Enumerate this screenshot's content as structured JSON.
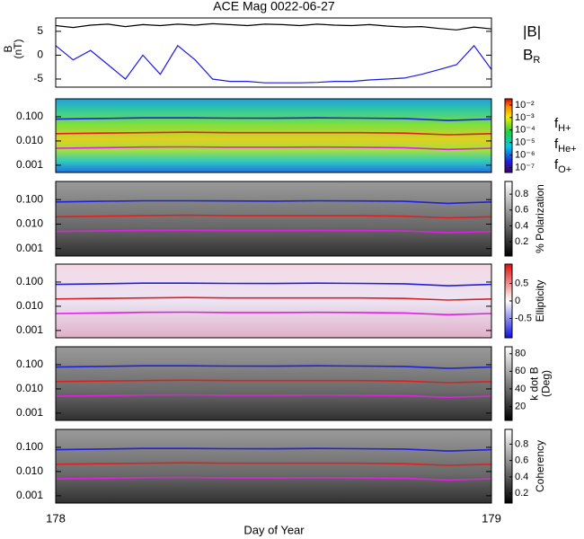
{
  "chart_data": [
    {
      "type": "line",
      "title": "ACE Mag 0022-06-27",
      "ylabel": [
        "B",
        "(nT)"
      ],
      "x": [
        178,
        178.04,
        178.08,
        178.12,
        178.16,
        178.2,
        178.24,
        178.28,
        178.32,
        178.36,
        178.4,
        178.44,
        178.48,
        178.52,
        178.56,
        178.6,
        178.64,
        178.68,
        178.72,
        178.76,
        178.8,
        178.84,
        178.88,
        178.92,
        178.96,
        179
      ],
      "xlim": [
        178,
        179
      ],
      "ylim": [
        -6.7,
        7.8
      ],
      "yticks": [
        5,
        0,
        -5
      ],
      "series": [
        {
          "name": "|B|",
          "color": "#000000",
          "values": [
            6.2,
            5.8,
            6.3,
            6.5,
            6,
            6.4,
            6.2,
            6.5,
            6.3,
            6.6,
            6.4,
            6.2,
            6.5,
            6.4,
            6.2,
            6.5,
            6.3,
            6.2,
            6.4,
            6.1,
            5.9,
            6,
            5.6,
            5.3,
            5.9,
            5.5
          ]
        },
        {
          "name": "B_R",
          "color": "#1a1ae6",
          "values": [
            2,
            -1,
            1,
            -2,
            -5,
            0,
            -4,
            2,
            -1,
            -5,
            -5.5,
            -5.5,
            -5.8,
            -5.8,
            -5.8,
            -5.7,
            -5.5,
            -5.5,
            -5.2,
            -5,
            -4.8,
            -4,
            -3,
            -2,
            2,
            -3
          ]
        }
      ]
    },
    {
      "type": "spectrogram",
      "ylog": true,
      "xlim": [
        178,
        179
      ],
      "ylim": [
        0.0005,
        0.55
      ],
      "yticks": [
        {
          "value": 0.1,
          "label": "0.100"
        },
        {
          "value": 0.01,
          "label": "0.010"
        },
        {
          "value": 0.001,
          "label": "0.001"
        }
      ],
      "colormap": "rainbow",
      "clim": [
        -7.4,
        -1.5
      ],
      "cticks": [
        {
          "value": -2,
          "label": "10⁻²"
        },
        {
          "value": -3,
          "label": "10⁻³"
        },
        {
          "value": -4,
          "label": "10⁻⁴"
        },
        {
          "value": -5,
          "label": "10⁻⁵"
        },
        {
          "value": -6,
          "label": "10⁻⁶"
        },
        {
          "value": -7,
          "label": "10⁻⁷"
        }
      ],
      "x": [
        178,
        178.1,
        178.2,
        178.3,
        178.4,
        178.5,
        178.6,
        178.7,
        178.8,
        178.9,
        179
      ],
      "series": [
        {
          "name": "f_H+",
          "color": "#2020e0",
          "values": [
            0.08,
            0.085,
            0.09,
            0.09,
            0.088,
            0.087,
            0.09,
            0.088,
            0.085,
            0.07,
            0.08
          ]
        },
        {
          "name": "f_He+",
          "color": "#e02020",
          "values": [
            0.02,
            0.021,
            0.022,
            0.023,
            0.022,
            0.022,
            0.022,
            0.022,
            0.021,
            0.018,
            0.02
          ]
        },
        {
          "name": "f_O+",
          "color": "#e020e0",
          "values": [
            0.005,
            0.0053,
            0.0056,
            0.0057,
            0.0055,
            0.0055,
            0.0056,
            0.0055,
            0.0053,
            0.0045,
            0.005
          ]
        }
      ]
    },
    {
      "type": "spectrogram",
      "ylog": true,
      "xlim": [
        178,
        179
      ],
      "ylim": [
        0.0005,
        0.55
      ],
      "yticks": [
        {
          "value": 0.1,
          "label": "0.100"
        },
        {
          "value": 0.01,
          "label": "0.010"
        },
        {
          "value": 0.001,
          "label": "0.001"
        }
      ],
      "colormap": "gray",
      "clim": [
        0.02,
        0.96
      ],
      "cticks": [
        0.8,
        0.6,
        0.4,
        0.2
      ],
      "clabel": [
        "% Polarization"
      ],
      "x": [
        178,
        178.1,
        178.2,
        178.3,
        178.4,
        178.5,
        178.6,
        178.7,
        178.8,
        178.9,
        179
      ],
      "series": [
        {
          "color": "#2020e0",
          "values": [
            0.08,
            0.085,
            0.09,
            0.09,
            0.088,
            0.087,
            0.09,
            0.088,
            0.085,
            0.07,
            0.08
          ]
        },
        {
          "color": "#e02020",
          "values": [
            0.02,
            0.021,
            0.022,
            0.023,
            0.022,
            0.022,
            0.022,
            0.022,
            0.021,
            0.018,
            0.02
          ]
        },
        {
          "color": "#e020e0",
          "values": [
            0.005,
            0.0053,
            0.0056,
            0.0057,
            0.0055,
            0.0055,
            0.0056,
            0.0055,
            0.0053,
            0.0045,
            0.005
          ]
        }
      ]
    },
    {
      "type": "spectrogram",
      "ylog": true,
      "xlim": [
        178,
        179
      ],
      "ylim": [
        0.0005,
        0.55
      ],
      "yticks": [
        {
          "value": 0.1,
          "label": "0.100"
        },
        {
          "value": 0.01,
          "label": "0.010"
        },
        {
          "value": 0.001,
          "label": "0.001"
        }
      ],
      "colormap": "bwr",
      "clim": [
        -1.05,
        1.05
      ],
      "cticks": [
        0.5,
        0.0,
        -0.5
      ],
      "clabel": [
        "Ellipticity"
      ],
      "x": [
        178,
        178.1,
        178.2,
        178.3,
        178.4,
        178.5,
        178.6,
        178.7,
        178.8,
        178.9,
        179
      ],
      "series": [
        {
          "color": "#2020e0",
          "values": [
            0.08,
            0.085,
            0.09,
            0.09,
            0.088,
            0.087,
            0.09,
            0.088,
            0.085,
            0.07,
            0.08
          ]
        },
        {
          "color": "#e02020",
          "values": [
            0.02,
            0.021,
            0.022,
            0.023,
            0.022,
            0.022,
            0.022,
            0.022,
            0.021,
            0.018,
            0.02
          ]
        },
        {
          "color": "#e020e0",
          "values": [
            0.005,
            0.0053,
            0.0056,
            0.0057,
            0.0055,
            0.0055,
            0.0056,
            0.0055,
            0.0053,
            0.0045,
            0.005
          ]
        }
      ]
    },
    {
      "type": "spectrogram",
      "ylog": true,
      "xlim": [
        178,
        179
      ],
      "ylim": [
        0.0005,
        0.55
      ],
      "yticks": [
        {
          "value": 0.1,
          "label": "0.100"
        },
        {
          "value": 0.01,
          "label": "0.010"
        },
        {
          "value": 0.001,
          "label": "0.001"
        }
      ],
      "colormap": "gray",
      "clim": [
        4,
        88
      ],
      "cticks": [
        80,
        60,
        40,
        20
      ],
      "clabel": [
        "k dot B",
        "(Deg)"
      ],
      "x": [
        178,
        178.1,
        178.2,
        178.3,
        178.4,
        178.5,
        178.6,
        178.7,
        178.8,
        178.9,
        179
      ],
      "series": [
        {
          "color": "#2020e0",
          "values": [
            0.08,
            0.085,
            0.09,
            0.09,
            0.088,
            0.087,
            0.09,
            0.088,
            0.085,
            0.07,
            0.08
          ]
        },
        {
          "color": "#e02020",
          "values": [
            0.02,
            0.021,
            0.022,
            0.023,
            0.022,
            0.022,
            0.022,
            0.022,
            0.021,
            0.018,
            0.02
          ]
        },
        {
          "color": "#e020e0",
          "values": [
            0.005,
            0.0053,
            0.0056,
            0.0057,
            0.0055,
            0.0055,
            0.0056,
            0.0055,
            0.0053,
            0.0045,
            0.005
          ]
        }
      ]
    },
    {
      "type": "spectrogram",
      "ylog": true,
      "xlim": [
        178,
        179
      ],
      "ylim": [
        0.0005,
        0.55
      ],
      "yticks": [
        {
          "value": 0.1,
          "label": "0.100"
        },
        {
          "value": 0.01,
          "label": "0.010"
        },
        {
          "value": 0.001,
          "label": "0.001"
        }
      ],
      "colormap": "gray",
      "clim": [
        0.08,
        0.98
      ],
      "cticks": [
        0.8,
        0.6,
        0.4,
        0.2
      ],
      "clabel": [
        "Coherency"
      ],
      "xticks": [
        178,
        179
      ],
      "xlabel": "Day of Year",
      "x": [
        178,
        178.1,
        178.2,
        178.3,
        178.4,
        178.5,
        178.6,
        178.7,
        178.8,
        178.9,
        179
      ],
      "series": [
        {
          "color": "#2020e0",
          "values": [
            0.08,
            0.085,
            0.09,
            0.09,
            0.088,
            0.087,
            0.09,
            0.088,
            0.085,
            0.07,
            0.08
          ]
        },
        {
          "color": "#e02020",
          "values": [
            0.02,
            0.021,
            0.022,
            0.023,
            0.022,
            0.022,
            0.022,
            0.022,
            0.021,
            0.018,
            0.02
          ]
        },
        {
          "color": "#e020e0",
          "values": [
            0.005,
            0.0053,
            0.0056,
            0.0057,
            0.0055,
            0.0055,
            0.0056,
            0.0055,
            0.0053,
            0.0045,
            0.005
          ]
        }
      ]
    }
  ]
}
